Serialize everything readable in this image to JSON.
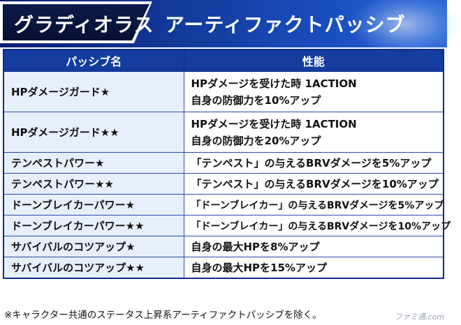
{
  "banner": {
    "character_name": "グラディオラス",
    "section_title": "アーティファクトパッシブ"
  },
  "table": {
    "headers": [
      "パッシブ名",
      "性能"
    ],
    "rows": [
      {
        "name": "HPダメージガード★",
        "perf": [
          "HPダメージを受けた時 1ACTION",
          "自身の防御力を10%アップ"
        ]
      },
      {
        "name": "HPダメージガード★★",
        "perf": [
          "HPダメージを受けた時 1ACTION",
          "自身の防御力を20%アップ"
        ]
      },
      {
        "name": "テンペストパワー★",
        "perf": [
          "「テンペスト」の与えるBRVダメージを5%アップ"
        ]
      },
      {
        "name": "テンペストパワー★★",
        "perf": [
          "「テンペスト」の与えるBRVダメージを10%アップ"
        ]
      },
      {
        "name": "ドーンブレイカーパワー★",
        "perf": [
          "「ドーンブレイカー」の与えるBRVダメージを5%アップ"
        ]
      },
      {
        "name": "ドーンブレイカーパワー★★",
        "perf": [
          "「ドーンブレイカー」の与えるBRVダメージを10%アップ"
        ]
      },
      {
        "name": "サバイバルのコツアップ★",
        "perf": [
          "自身の最大HPを8%アップ"
        ]
      },
      {
        "name": "サバイバルのコツアップ★★",
        "perf": [
          "自身の最大HPを15%アップ"
        ]
      }
    ]
  },
  "footnote": "※キャラクター共通のステータス上昇系アーティファクトパッシブを除く。",
  "watermark": "ファミ通.com"
}
